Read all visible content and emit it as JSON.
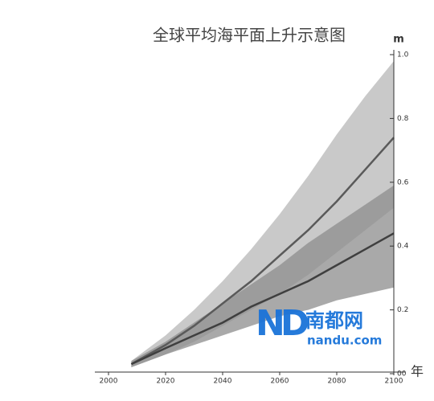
{
  "chart_data": {
    "type": "line",
    "title": "全球平均海平面上升示意图",
    "y_unit": "m",
    "x_unit": "年",
    "x": [
      2008,
      2020,
      2030,
      2040,
      2050,
      2060,
      2070,
      2080,
      2090,
      2100
    ],
    "bands": [
      {
        "color": "#c9c9c9",
        "upper": [
          0.04,
          0.12,
          0.2,
          0.29,
          0.39,
          0.5,
          0.62,
          0.75,
          0.87,
          0.98
        ],
        "lower": [
          0.02,
          0.06,
          0.1,
          0.15,
          0.2,
          0.25,
          0.31,
          0.38,
          0.45,
          0.52
        ]
      },
      {
        "color": "#8c8c8c",
        "upper": [
          0.04,
          0.1,
          0.16,
          0.22,
          0.28,
          0.34,
          0.41,
          0.47,
          0.53,
          0.59
        ],
        "lower": [
          0.02,
          0.06,
          0.09,
          0.12,
          0.15,
          0.18,
          0.2,
          0.23,
          0.25,
          0.27
        ]
      }
    ],
    "series": [
      {
        "color": "#5a5a5a",
        "values": [
          0.03,
          0.09,
          0.15,
          0.22,
          0.29,
          0.37,
          0.45,
          0.54,
          0.64,
          0.74
        ]
      },
      {
        "color": "#3f3f3f",
        "values": [
          0.03,
          0.08,
          0.12,
          0.16,
          0.21,
          0.25,
          0.29,
          0.34,
          0.39,
          0.44
        ]
      }
    ],
    "xlim": [
      2000,
      2100
    ],
    "xticks": [
      2000,
      2020,
      2040,
      2060,
      2080,
      2100
    ],
    "ylim": [
      0,
      1
    ],
    "yticks": [
      {
        "value": 0,
        "label": "00"
      },
      0.2,
      0.4,
      0.6,
      0.8,
      {
        "value": 1,
        "label": "1.0"
      }
    ],
    "watermark": {
      "logo": "ND",
      "brand": "南都网",
      "site": "nandu.com"
    }
  }
}
